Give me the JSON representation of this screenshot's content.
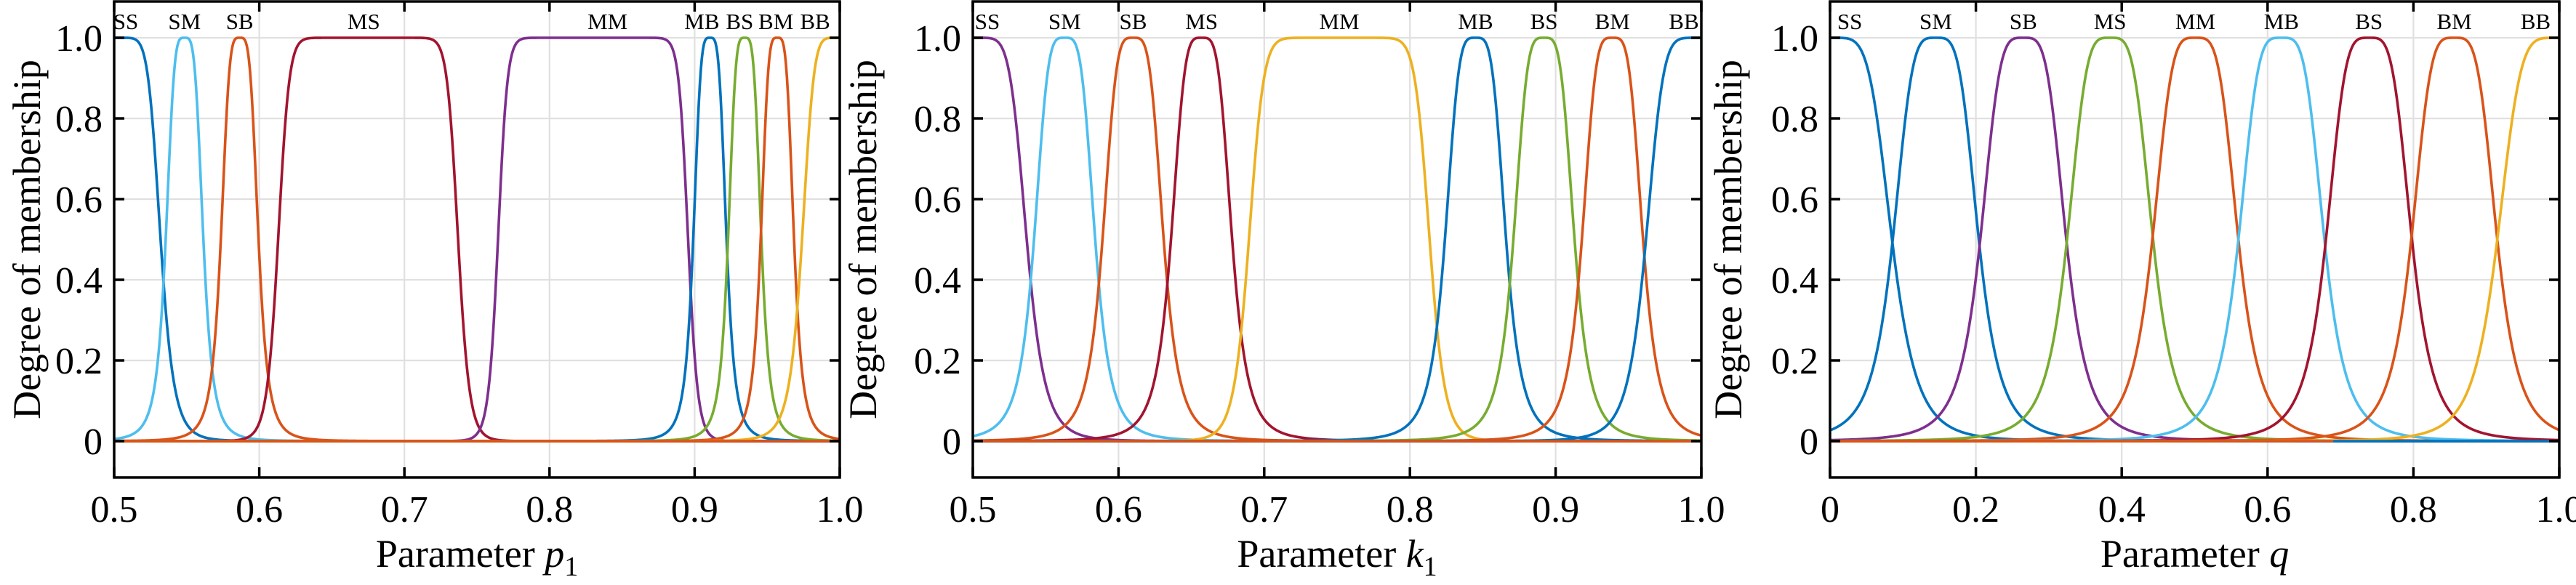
{
  "figure": {
    "background": "#ffffff",
    "ylabel": "Degree of membership",
    "curve_model": "generalized bell mf: y = 1 / (1 + |(x-c)/a|^(2b))"
  },
  "chart_data": [
    {
      "type": "line",
      "title": "",
      "xlabel_prefix": "Parameter ",
      "xlabel_symbol": "p",
      "xlabel_subscript": "1",
      "ylabel": "Degree of membership",
      "xlim": [
        0.5,
        1.0
      ],
      "ylim": [
        -0.09,
        1.09
      ],
      "xticks": [
        0.5,
        0.6,
        0.7,
        0.8,
        0.9,
        1.0
      ],
      "xtick_labels": [
        "0.5",
        "0.6",
        "0.7",
        "0.8",
        "0.9",
        "1.0"
      ],
      "yticks": [
        0,
        0.2,
        0.4,
        0.6,
        0.8,
        1.0
      ],
      "ytick_labels": [
        "0",
        "0.2",
        "0.4",
        "0.6",
        "0.8",
        "1.0"
      ],
      "grid": true,
      "curves": [
        {
          "label": "SS",
          "color": "#0072BD",
          "center": 0.5,
          "half_width": 0.032,
          "slope": 3.5,
          "label_x": 0.508
        },
        {
          "label": "SM",
          "color": "#4DBEEE",
          "center": 0.5485,
          "half_width": 0.013,
          "slope": 2,
          "label_x": 0.5485
        },
        {
          "label": "SB",
          "color": "#D95319",
          "center": 0.5865,
          "half_width": 0.013,
          "slope": 2,
          "label_x": 0.5865
        },
        {
          "label": "MS",
          "color": "#A2142F",
          "center": 0.675,
          "half_width": 0.062,
          "slope": 8,
          "label_x": 0.672
        },
        {
          "label": "MM",
          "color": "#7E2F8E",
          "center": 0.83,
          "half_width": 0.0655,
          "slope": 10,
          "label_x": 0.84
        },
        {
          "label": "MB",
          "color": "#0072BD",
          "center": 0.9105,
          "half_width": 0.0115,
          "slope": 2,
          "label_x": 0.905
        },
        {
          "label": "BS",
          "color": "#77AC30",
          "center": 0.9345,
          "half_width": 0.0115,
          "slope": 2,
          "label_x": 0.931
        },
        {
          "label": "BM",
          "color": "#D95319",
          "center": 0.957,
          "half_width": 0.0115,
          "slope": 2,
          "label_x": 0.956
        },
        {
          "label": "BB",
          "color": "#EDB120",
          "center": 1.0,
          "half_width": 0.026,
          "slope": 3,
          "label_x": 0.983
        }
      ],
      "baseline_segments": [
        {
          "from": 0.5,
          "to": 1.0,
          "color": "#D95319"
        }
      ]
    },
    {
      "type": "line",
      "title": "",
      "xlabel_prefix": "Parameter ",
      "xlabel_symbol": "k",
      "xlabel_subscript": "1",
      "ylabel": "Degree of membership",
      "xlim": [
        0.5,
        1.0
      ],
      "ylim": [
        -0.09,
        1.09
      ],
      "xticks": [
        0.5,
        0.6,
        0.7,
        0.8,
        0.9,
        1.0
      ],
      "xtick_labels": [
        "0.5",
        "0.6",
        "0.7",
        "0.8",
        "0.9",
        "1.0"
      ],
      "yticks": [
        0,
        0.2,
        0.4,
        0.6,
        0.8,
        1.0
      ],
      "ytick_labels": [
        "0",
        "0.2",
        "0.4",
        "0.6",
        "0.8",
        "1.0"
      ],
      "grid": true,
      "curves": [
        {
          "label": "SS",
          "color": "#7E2F8E",
          "center": 0.5,
          "half_width": 0.037,
          "slope": 3,
          "label_x": 0.51
        },
        {
          "label": "SM",
          "color": "#4DBEEE",
          "center": 0.563,
          "half_width": 0.021,
          "slope": 2,
          "label_x": 0.563
        },
        {
          "label": "SB",
          "color": "#D95319",
          "center": 0.61,
          "half_width": 0.021,
          "slope": 2,
          "label_x": 0.61
        },
        {
          "label": "MS",
          "color": "#A2142F",
          "center": 0.657,
          "half_width": 0.021,
          "slope": 2,
          "label_x": 0.657
        },
        {
          "label": "MM",
          "color": "#EDB120",
          "center": 0.7515,
          "half_width": 0.062,
          "slope": 6,
          "label_x": 0.7515
        },
        {
          "label": "MB",
          "color": "#0072BD",
          "center": 0.845,
          "half_width": 0.021,
          "slope": 2,
          "label_x": 0.845
        },
        {
          "label": "BS",
          "color": "#77AC30",
          "center": 0.892,
          "half_width": 0.021,
          "slope": 2,
          "label_x": 0.892
        },
        {
          "label": "BM",
          "color": "#D95319",
          "center": 0.939,
          "half_width": 0.021,
          "slope": 2,
          "label_x": 0.939
        },
        {
          "label": "BB",
          "color": "#0072BD",
          "center": 1.0,
          "half_width": 0.038,
          "slope": 3,
          "label_x": 0.988
        }
      ],
      "baseline_segments": [
        {
          "from": 0.5,
          "to": 1.0,
          "color": "#D95319"
        }
      ]
    },
    {
      "type": "line",
      "title": "",
      "xlabel_prefix": "Parameter ",
      "xlabel_symbol": "q",
      "xlabel_subscript": "",
      "ylabel": "Degree of membership",
      "xlim": [
        0,
        1.0
      ],
      "ylim": [
        -0.09,
        1.09
      ],
      "xticks": [
        0,
        0.2,
        0.4,
        0.6,
        0.8,
        1.0
      ],
      "xtick_labels": [
        "0",
        "0.2",
        "0.4",
        "0.6",
        "0.8",
        "1.0"
      ],
      "yticks": [
        0,
        0.2,
        0.4,
        0.6,
        0.8,
        1.0
      ],
      "ytick_labels": [
        "0",
        "0.2",
        "0.4",
        "0.6",
        "0.8",
        "1.0"
      ],
      "grid": true,
      "curves": [
        {
          "label": "SS",
          "color": "#0072BD",
          "center": 0.0,
          "half_width": 0.085,
          "slope": 2.5,
          "label_x": 0.027
        },
        {
          "label": "SM",
          "color": "#0072BD",
          "center": 0.145,
          "half_width": 0.059,
          "slope": 2,
          "label_x": 0.145
        },
        {
          "label": "SB",
          "color": "#7E2F8E",
          "center": 0.265,
          "half_width": 0.059,
          "slope": 2,
          "label_x": 0.265
        },
        {
          "label": "MS",
          "color": "#77AC30",
          "center": 0.384,
          "half_width": 0.059,
          "slope": 2,
          "label_x": 0.384
        },
        {
          "label": "MM",
          "color": "#D95319",
          "center": 0.501,
          "half_width": 0.059,
          "slope": 2,
          "label_x": 0.501
        },
        {
          "label": "MB",
          "color": "#4DBEEE",
          "center": 0.619,
          "half_width": 0.059,
          "slope": 2,
          "label_x": 0.619
        },
        {
          "label": "BS",
          "color": "#A2142F",
          "center": 0.739,
          "half_width": 0.059,
          "slope": 2,
          "label_x": 0.739
        },
        {
          "label": "BM",
          "color": "#D95319",
          "center": 0.856,
          "half_width": 0.059,
          "slope": 2,
          "label_x": 0.856
        },
        {
          "label": "BB",
          "color": "#EDB120",
          "center": 1.0,
          "half_width": 0.085,
          "slope": 2.5,
          "label_x": 0.9675
        }
      ],
      "baseline_segments": [
        {
          "from": 0.0,
          "to": 0.69,
          "color": "#D95319"
        },
        {
          "from": 0.69,
          "to": 1.0,
          "color": "#0072BD"
        }
      ]
    }
  ]
}
